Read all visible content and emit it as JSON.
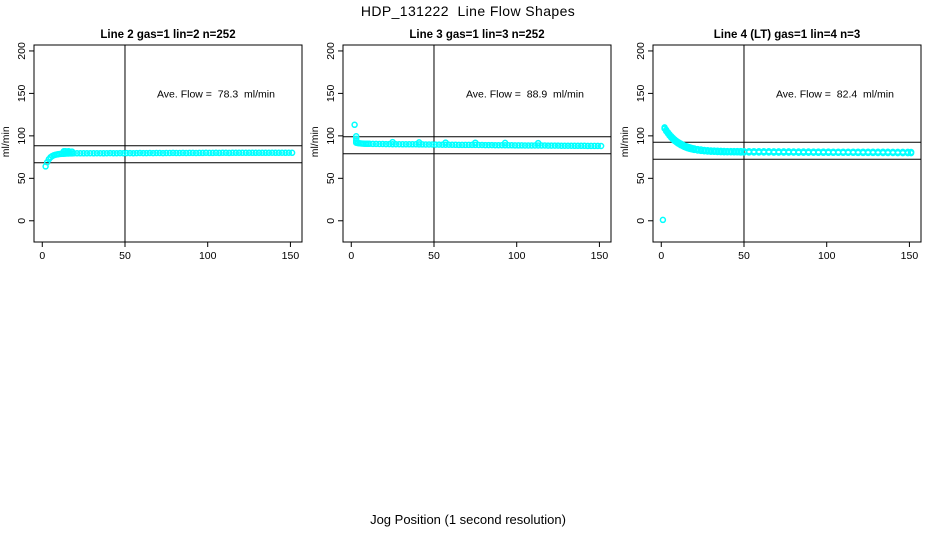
{
  "title": "HDP_131222  Line Flow Shapes",
  "xlabel": "Jog Position (1 second resolution)",
  "colors": {
    "points": "#00FFFF",
    "axis": "#000000",
    "background": "#FFFFFF",
    "text": "#000000"
  },
  "chart_data": [
    {
      "type": "scatter",
      "title": "Line 2 gas=1 lin=2 n=252",
      "annotation": "Ave. Flow =  78.3  ml/min",
      "ave_flow_ml_min": 78.3,
      "n": 252,
      "ylabel": "ml/min",
      "xlim": [
        -5,
        157
      ],
      "ylim": [
        -25,
        207
      ],
      "xticks": [
        0,
        50,
        100,
        150
      ],
      "yticks": [
        0,
        50,
        100,
        150,
        200
      ],
      "vline": 50,
      "hlines": [
        88.3,
        68.3
      ],
      "grid": false,
      "points": [
        [
          2,
          64
        ],
        [
          3,
          69
        ],
        [
          4,
          72.5
        ],
        [
          5,
          74.8
        ],
        [
          6,
          76.2
        ],
        [
          7,
          77.2
        ],
        [
          8,
          77.8
        ],
        [
          9,
          78.2
        ],
        [
          10,
          78.5
        ],
        [
          11,
          78.7
        ],
        [
          12,
          78.9
        ],
        [
          13,
          79.0
        ],
        [
          13,
          81.8
        ],
        [
          14,
          79.1
        ],
        [
          14,
          81.9
        ],
        [
          15,
          79.2
        ],
        [
          15,
          81.6
        ],
        [
          16,
          79.2
        ],
        [
          16,
          81.8
        ],
        [
          17,
          79.3
        ],
        [
          18,
          79.3
        ],
        [
          18,
          81.5
        ],
        [
          19,
          79.4
        ],
        [
          21,
          79.4
        ],
        [
          23,
          79.5
        ],
        [
          25,
          79.5
        ],
        [
          27,
          79.5
        ],
        [
          29,
          79.6
        ],
        [
          31,
          79.5
        ],
        [
          33,
          79.6
        ],
        [
          35,
          79.6
        ],
        [
          37,
          79.5
        ],
        [
          39,
          79.6
        ],
        [
          41,
          79.7
        ],
        [
          43,
          79.6
        ],
        [
          45,
          79.6
        ],
        [
          47,
          79.7
        ],
        [
          49,
          79.6
        ],
        [
          51,
          79.7
        ],
        [
          53,
          79.7
        ],
        [
          55,
          79.6
        ],
        [
          57,
          79.7
        ],
        [
          59,
          79.8
        ],
        [
          61,
          79.7
        ],
        [
          63,
          79.7
        ],
        [
          65,
          79.8
        ],
        [
          67,
          79.7
        ],
        [
          69,
          79.8
        ],
        [
          71,
          79.8
        ],
        [
          73,
          79.7
        ],
        [
          75,
          79.8
        ],
        [
          77,
          79.8
        ],
        [
          79,
          79.9
        ],
        [
          81,
          79.8
        ],
        [
          83,
          79.8
        ],
        [
          85,
          79.9
        ],
        [
          87,
          79.8
        ],
        [
          89,
          79.9
        ],
        [
          91,
          79.9
        ],
        [
          93,
          79.8
        ],
        [
          95,
          79.9
        ],
        [
          97,
          79.9
        ],
        [
          99,
          80.0
        ],
        [
          101,
          79.9
        ],
        [
          103,
          79.9
        ],
        [
          105,
          80.0
        ],
        [
          107,
          79.9
        ],
        [
          109,
          80.0
        ],
        [
          111,
          80.0
        ],
        [
          113,
          79.9
        ],
        [
          115,
          80.0
        ],
        [
          117,
          80.0
        ],
        [
          119,
          80.1
        ],
        [
          121,
          80.0
        ],
        [
          123,
          80.0
        ],
        [
          125,
          80.1
        ],
        [
          127,
          80.0
        ],
        [
          129,
          80.1
        ],
        [
          131,
          80.1
        ],
        [
          133,
          80.0
        ],
        [
          135,
          80.1
        ],
        [
          137,
          80.1
        ],
        [
          139,
          80.2
        ],
        [
          141,
          80.1
        ],
        [
          143,
          80.1
        ],
        [
          145,
          80.2
        ],
        [
          147,
          80.1
        ],
        [
          149,
          80.2
        ],
        [
          151,
          80.1
        ]
      ]
    },
    {
      "type": "scatter",
      "title": "Line 3 gas=1 lin=3 n=252",
      "annotation": "Ave. Flow =  88.9  ml/min",
      "ave_flow_ml_min": 88.9,
      "n": 252,
      "ylabel": "ml/min",
      "xlim": [
        -5,
        157
      ],
      "ylim": [
        -25,
        207
      ],
      "xticks": [
        0,
        50,
        100,
        150
      ],
      "yticks": [
        0,
        50,
        100,
        150,
        200
      ],
      "vline": 50,
      "hlines": [
        98.9,
        78.9
      ],
      "grid": false,
      "points": [
        [
          2,
          113
        ],
        [
          3,
          99.5
        ],
        [
          3,
          96.5
        ],
        [
          3,
          94
        ],
        [
          3,
          92
        ],
        [
          4,
          91.5
        ],
        [
          5,
          91.2
        ],
        [
          6,
          91.0
        ],
        [
          7,
          90.9
        ],
        [
          8,
          90.8
        ],
        [
          9,
          90.7
        ],
        [
          10,
          90.7
        ],
        [
          11,
          90.6
        ],
        [
          13,
          90.5
        ],
        [
          15,
          90.5
        ],
        [
          17,
          90.4
        ],
        [
          19,
          90.4
        ],
        [
          21,
          90.3
        ],
        [
          23,
          90.3
        ],
        [
          25,
          90.2
        ],
        [
          25,
          92.6
        ],
        [
          27,
          90.2
        ],
        [
          29,
          90.2
        ],
        [
          31,
          90.1
        ],
        [
          33,
          90.1
        ],
        [
          35,
          90.0
        ],
        [
          37,
          90.0
        ],
        [
          39,
          90.0
        ],
        [
          41,
          89.9
        ],
        [
          41,
          92.3
        ],
        [
          43,
          89.9
        ],
        [
          45,
          89.8
        ],
        [
          47,
          89.8
        ],
        [
          49,
          89.8
        ],
        [
          51,
          89.7
        ],
        [
          53,
          89.7
        ],
        [
          55,
          89.6
        ],
        [
          57,
          89.6
        ],
        [
          57,
          92.1
        ],
        [
          59,
          89.6
        ],
        [
          61,
          89.5
        ],
        [
          63,
          89.5
        ],
        [
          65,
          89.4
        ],
        [
          67,
          89.4
        ],
        [
          69,
          89.4
        ],
        [
          71,
          89.3
        ],
        [
          73,
          89.3
        ],
        [
          75,
          89.3
        ],
        [
          75,
          91.9
        ],
        [
          77,
          89.2
        ],
        [
          79,
          89.2
        ],
        [
          81,
          89.1
        ],
        [
          83,
          89.1
        ],
        [
          85,
          89.1
        ],
        [
          87,
          89.0
        ],
        [
          89,
          89.0
        ],
        [
          91,
          89.0
        ],
        [
          93,
          88.9
        ],
        [
          93,
          91.7
        ],
        [
          95,
          88.9
        ],
        [
          97,
          88.9
        ],
        [
          99,
          88.8
        ],
        [
          101,
          88.8
        ],
        [
          103,
          88.8
        ],
        [
          105,
          88.7
        ],
        [
          107,
          88.7
        ],
        [
          109,
          88.7
        ],
        [
          111,
          88.6
        ],
        [
          113,
          88.6
        ],
        [
          113,
          91.5
        ],
        [
          115,
          88.6
        ],
        [
          117,
          88.6
        ],
        [
          119,
          88.5
        ],
        [
          121,
          88.5
        ],
        [
          123,
          88.5
        ],
        [
          125,
          88.5
        ],
        [
          127,
          88.4
        ],
        [
          129,
          88.4
        ],
        [
          131,
          88.4
        ],
        [
          133,
          88.4
        ],
        [
          135,
          88.3
        ],
        [
          137,
          88.3
        ],
        [
          139,
          88.3
        ],
        [
          141,
          88.3
        ],
        [
          143,
          88.2
        ],
        [
          145,
          88.2
        ],
        [
          147,
          88.2
        ],
        [
          149,
          88.2
        ],
        [
          151,
          88.1
        ]
      ]
    },
    {
      "type": "scatter",
      "title": "Line 4 (LT) gas=1 lin=4 n=3",
      "annotation": "Ave. Flow =  82.4  ml/min",
      "ave_flow_ml_min": 82.4,
      "n": 3,
      "ylabel": "ml/min",
      "xlim": [
        -5,
        157
      ],
      "ylim": [
        -25,
        207
      ],
      "xticks": [
        0,
        50,
        100,
        150
      ],
      "yticks": [
        0,
        50,
        100,
        150,
        200
      ],
      "vline": 50,
      "hlines": [
        92.4,
        72.4
      ],
      "grid": false,
      "points": [
        [
          1,
          1
        ],
        [
          2,
          110
        ],
        [
          2,
          108.5
        ],
        [
          3,
          107
        ],
        [
          3,
          105.5
        ],
        [
          4,
          104.2
        ],
        [
          4,
          102.8
        ],
        [
          5,
          101.8
        ],
        [
          5,
          100.3
        ],
        [
          6,
          99.6
        ],
        [
          6,
          98.0
        ],
        [
          7,
          97.6
        ],
        [
          7,
          96.0
        ],
        [
          8,
          95.8
        ],
        [
          8,
          94.2
        ],
        [
          9,
          94.2
        ],
        [
          9,
          92.6
        ],
        [
          10,
          92.9
        ],
        [
          10,
          91.2
        ],
        [
          11,
          91.7
        ],
        [
          11,
          90.0
        ],
        [
          12,
          90.6
        ],
        [
          12,
          88.9
        ],
        [
          13,
          89.6
        ],
        [
          13,
          87.9
        ],
        [
          14,
          88.7
        ],
        [
          14,
          87.0
        ],
        [
          15,
          87.9
        ],
        [
          15,
          86.2
        ],
        [
          16,
          87.2
        ],
        [
          16,
          85.5
        ],
        [
          17,
          86.6
        ],
        [
          17,
          84.9
        ],
        [
          18,
          86.0
        ],
        [
          18,
          84.4
        ],
        [
          19,
          85.5
        ],
        [
          19,
          83.9
        ],
        [
          20,
          85.1
        ],
        [
          20,
          83.5
        ],
        [
          22,
          84.4
        ],
        [
          22,
          82.8
        ],
        [
          24,
          83.9
        ],
        [
          24,
          82.3
        ],
        [
          26,
          83.4
        ],
        [
          26,
          81.9
        ],
        [
          28,
          83.1
        ],
        [
          28,
          81.6
        ],
        [
          30,
          82.8
        ],
        [
          30,
          81.4
        ],
        [
          32,
          82.6
        ],
        [
          32,
          81.2
        ],
        [
          34,
          82.5
        ],
        [
          34,
          81.0
        ],
        [
          36,
          82.3
        ],
        [
          36,
          80.9
        ],
        [
          38,
          82.2
        ],
        [
          38,
          80.8
        ],
        [
          40,
          82.1
        ],
        [
          40,
          80.7
        ],
        [
          42,
          82.1
        ],
        [
          42,
          80.7
        ],
        [
          44,
          82.0
        ],
        [
          44,
          80.6
        ],
        [
          46,
          82.0
        ],
        [
          46,
          80.6
        ],
        [
          48,
          82.0
        ],
        [
          48,
          80.5
        ],
        [
          50,
          81.9
        ],
        [
          50,
          80.5
        ],
        [
          53,
          81.9
        ],
        [
          53,
          80.5
        ],
        [
          56,
          81.9
        ],
        [
          56,
          80.4
        ],
        [
          59,
          81.8
        ],
        [
          59,
          80.4
        ],
        [
          62,
          81.8
        ],
        [
          62,
          80.4
        ],
        [
          65,
          81.8
        ],
        [
          65,
          80.4
        ],
        [
          68,
          81.7
        ],
        [
          68,
          80.3
        ],
        [
          71,
          81.7
        ],
        [
          71,
          80.3
        ],
        [
          74,
          81.7
        ],
        [
          74,
          80.3
        ],
        [
          77,
          81.7
        ],
        [
          77,
          80.3
        ],
        [
          80,
          81.6
        ],
        [
          80,
          80.3
        ],
        [
          83,
          81.6
        ],
        [
          83,
          80.2
        ],
        [
          86,
          81.6
        ],
        [
          86,
          80.2
        ],
        [
          89,
          81.6
        ],
        [
          89,
          80.2
        ],
        [
          92,
          81.5
        ],
        [
          92,
          80.2
        ],
        [
          95,
          81.5
        ],
        [
          95,
          80.1
        ],
        [
          98,
          81.5
        ],
        [
          98,
          80.1
        ],
        [
          101,
          81.5
        ],
        [
          101,
          80.1
        ],
        [
          104,
          81.4
        ],
        [
          104,
          80.1
        ],
        [
          107,
          81.4
        ],
        [
          107,
          80.0
        ],
        [
          110,
          81.4
        ],
        [
          110,
          80.0
        ],
        [
          113,
          81.4
        ],
        [
          113,
          80.0
        ],
        [
          116,
          81.3
        ],
        [
          116,
          80.0
        ],
        [
          119,
          81.3
        ],
        [
          119,
          79.9
        ],
        [
          122,
          81.3
        ],
        [
          122,
          79.9
        ],
        [
          125,
          81.3
        ],
        [
          125,
          79.9
        ],
        [
          128,
          81.2
        ],
        [
          128,
          79.9
        ],
        [
          131,
          81.2
        ],
        [
          131,
          79.8
        ],
        [
          134,
          81.2
        ],
        [
          134,
          79.8
        ],
        [
          137,
          81.2
        ],
        [
          137,
          79.8
        ],
        [
          140,
          81.1
        ],
        [
          140,
          79.8
        ],
        [
          143,
          81.1
        ],
        [
          143,
          79.7
        ],
        [
          146,
          81.1
        ],
        [
          146,
          79.7
        ],
        [
          149,
          81.1
        ],
        [
          149,
          79.7
        ],
        [
          151,
          81.0
        ],
        [
          151,
          79.7
        ]
      ]
    }
  ]
}
